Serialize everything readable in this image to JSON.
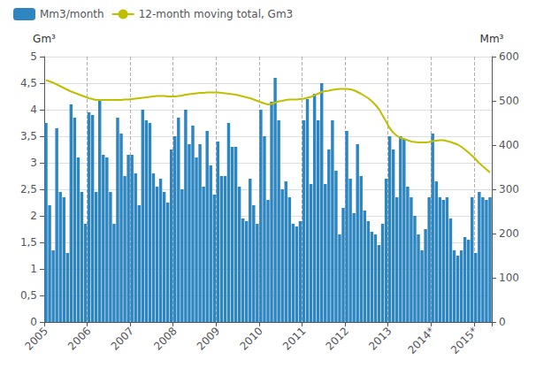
{
  "chart_data": {
    "type": "bar",
    "categories": [
      "2005",
      null,
      null,
      null,
      null,
      null,
      null,
      null,
      null,
      null,
      null,
      null,
      "2006",
      null,
      null,
      null,
      null,
      null,
      null,
      null,
      null,
      null,
      null,
      null,
      "2007",
      null,
      null,
      null,
      null,
      null,
      null,
      null,
      null,
      null,
      null,
      null,
      "2008",
      null,
      null,
      null,
      null,
      null,
      null,
      null,
      null,
      null,
      null,
      null,
      "2009",
      null,
      null,
      null,
      null,
      null,
      null,
      null,
      null,
      null,
      null,
      null,
      "2010",
      null,
      null,
      null,
      null,
      null,
      null,
      null,
      null,
      null,
      null,
      null,
      "2011",
      null,
      null,
      null,
      null,
      null,
      null,
      null,
      null,
      null,
      null,
      null,
      "2012",
      null,
      null,
      null,
      null,
      null,
      null,
      null,
      null,
      null,
      null,
      null,
      "2013",
      null,
      null,
      null,
      null,
      null,
      null,
      null,
      null,
      null,
      null,
      null,
      "2014*",
      null,
      null,
      null,
      null,
      null,
      null,
      null,
      null,
      null,
      null,
      null,
      "2015*",
      null,
      null,
      null,
      null
    ],
    "series": [
      {
        "name": "Mm3/month",
        "type": "bar",
        "color": "#2E86C1",
        "values": [
          3.75,
          2.2,
          1.35,
          3.65,
          2.45,
          2.35,
          1.3,
          4.1,
          3.85,
          3.1,
          2.45,
          1.85,
          3.95,
          3.9,
          2.45,
          4.2,
          3.15,
          3.1,
          2.45,
          1.85,
          3.85,
          3.55,
          2.75,
          3.15,
          3.15,
          2.8,
          2.2,
          4.0,
          3.8,
          3.75,
          2.8,
          2.55,
          2.7,
          2.45,
          2.25,
          3.25,
          3.5,
          3.85,
          2.5,
          4.0,
          3.35,
          3.7,
          3.1,
          3.35,
          2.55,
          3.6,
          2.95,
          2.4,
          3.4,
          2.75,
          2.75,
          3.75,
          3.3,
          3.3,
          2.55,
          1.95,
          1.9,
          2.7,
          2.2,
          1.85,
          4.0,
          3.5,
          2.3,
          4.15,
          4.6,
          3.8,
          2.5,
          2.65,
          2.35,
          1.85,
          1.8,
          1.9,
          3.8,
          4.2,
          2.6,
          4.3,
          3.8,
          4.5,
          2.6,
          3.25,
          3.8,
          2.85,
          1.65,
          2.15,
          3.6,
          2.7,
          2.05,
          3.35,
          2.75,
          2.1,
          1.9,
          1.7,
          1.65,
          1.45,
          1.85,
          2.7,
          3.5,
          3.25,
          2.35,
          3.5,
          3.45,
          2.55,
          2.35,
          2.0,
          1.65,
          1.35,
          1.75,
          2.35,
          3.55,
          2.65,
          2.35,
          2.3,
          2.35,
          1.95,
          1.35,
          1.25,
          1.35,
          1.6,
          1.55,
          2.35,
          1.3,
          2.45,
          2.35,
          2.3,
          2.35
        ]
      },
      {
        "name": "12-month moving total, Gm3",
        "type": "line",
        "color": "#BFBF00",
        "axis": "y2",
        "values": [
          547,
          544,
          541,
          537,
          533,
          529,
          525,
          521,
          518,
          515,
          512,
          509,
          506,
          504,
          502,
          502,
          502,
          502,
          502,
          502,
          502,
          502,
          503,
          503,
          504,
          505,
          506,
          507,
          508,
          509,
          510,
          511,
          511,
          511,
          510,
          510,
          510,
          511,
          512,
          514,
          515,
          516,
          517,
          518,
          518,
          519,
          519,
          519,
          519,
          518,
          517,
          516,
          515,
          514,
          512,
          510,
          508,
          506,
          503,
          500,
          497,
          494,
          492,
          493,
          496,
          499,
          500,
          502,
          503,
          503,
          503,
          504,
          505,
          507,
          509,
          513,
          516,
          520,
          522,
          523,
          525,
          526,
          527,
          527,
          527,
          526,
          524,
          520,
          516,
          511,
          506,
          499,
          491,
          481,
          467,
          453,
          438,
          428,
          421,
          416,
          414,
          411,
          408,
          407,
          406,
          406,
          406,
          407,
          409,
          410,
          411,
          411,
          409,
          407,
          404,
          401,
          396,
          390,
          383,
          376,
          368,
          359,
          352,
          345,
          338
        ]
      }
    ],
    "ylabel": "Gm³",
    "y2label": "Mm³",
    "ylim": [
      0,
      5
    ],
    "yticks": [
      0,
      {
        "value": 0.5,
        "label": "0,5"
      },
      1,
      {
        "value": 1.5,
        "label": "1,5"
      },
      2,
      {
        "value": 2.5,
        "label": "2,5"
      },
      3,
      {
        "value": 3.5,
        "label": "3,5"
      },
      4,
      {
        "value": 4.5,
        "label": "4,5"
      },
      5
    ],
    "y2lim": [
      0,
      600
    ],
    "y2ticks": [
      0,
      100,
      200,
      300,
      400,
      500,
      600
    ],
    "grid": true,
    "legend": "upper left"
  }
}
